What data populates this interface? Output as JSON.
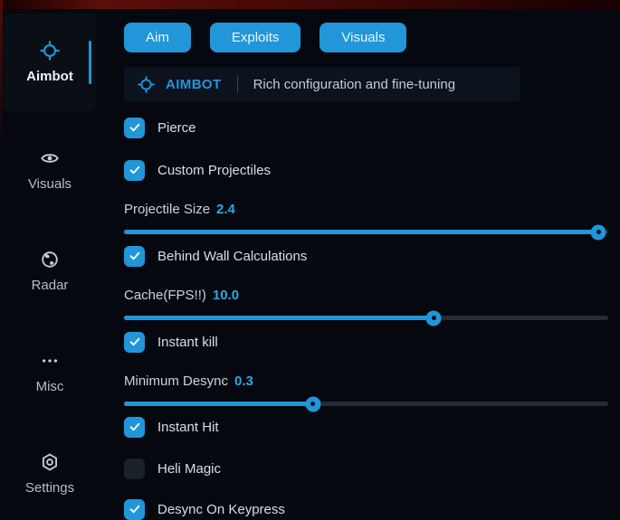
{
  "app": {
    "accent_color": "#2196d9",
    "top_bar_color": "#4a0a06",
    "background_color": "#05080f"
  },
  "sidebar": {
    "items": [
      {
        "label": "Aimbot",
        "icon": "crosshair-icon",
        "active": true
      },
      {
        "label": "Visuals",
        "icon": "eye-icon",
        "active": false
      },
      {
        "label": "Radar",
        "icon": "globe-icon",
        "active": false
      },
      {
        "label": "Misc",
        "icon": "ellipsis-icon",
        "active": false
      },
      {
        "label": "Settings",
        "icon": "gear-icon",
        "active": false
      }
    ]
  },
  "tabs": [
    {
      "label": "Aim"
    },
    {
      "label": "Exploits"
    },
    {
      "label": "Visuals"
    }
  ],
  "header": {
    "icon": "crosshair-icon",
    "title": "AIMBOT",
    "subtitle": "Rich configuration and fine-tuning"
  },
  "controls": [
    {
      "type": "checkbox",
      "label": "Pierce",
      "checked": true
    },
    {
      "type": "checkbox",
      "label": "Custom Projectiles",
      "checked": true
    },
    {
      "type": "slider",
      "label": "Projectile Size",
      "value": "2.4",
      "percent": 98
    },
    {
      "type": "checkbox",
      "label": "Behind Wall Calculations",
      "checked": true
    },
    {
      "type": "slider",
      "label": "Cache(FPS!!)",
      "value": "10.0",
      "percent": 64
    },
    {
      "type": "checkbox",
      "label": "Instant kill",
      "checked": true
    },
    {
      "type": "slider",
      "label": "Minimum Desync",
      "value": "0.3",
      "percent": 39
    },
    {
      "type": "checkbox",
      "label": "Instant Hit",
      "checked": true
    },
    {
      "type": "checkbox",
      "label": "Heli Magic",
      "checked": false
    },
    {
      "type": "checkbox",
      "label": "Desync On Keypress",
      "checked": true
    }
  ]
}
